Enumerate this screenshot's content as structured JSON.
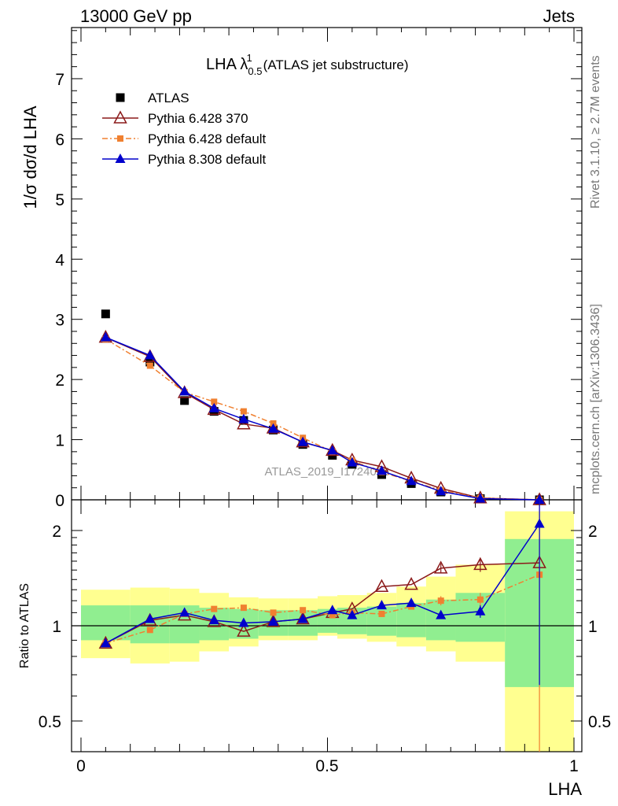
{
  "header": {
    "energy_label": "13000 GeV pp",
    "process_label": "Jets"
  },
  "side_text": {
    "rivet": "Rivet 3.1.10, ≥ 2.7M events",
    "site": "mcplots.cern.ch [arXiv:1306.3436]"
  },
  "watermark": "ATLAS_2019_I1724098",
  "chart_data": [
    {
      "type": "scatter",
      "panel": "main",
      "title": {
        "prefix": "LHA λ",
        "sup": "1",
        "sub": "0.5",
        "suffix": "(ATLAS jet substructure)"
      },
      "ylabel": "1/σ dσ/d LHA",
      "xlim": [
        0,
        1
      ],
      "ylim": [
        0,
        7.85
      ],
      "yticks": [
        0,
        1,
        2,
        3,
        4,
        5,
        6,
        7
      ],
      "x": [
        0.05,
        0.14,
        0.21,
        0.27,
        0.33,
        0.39,
        0.45,
        0.51,
        0.55,
        0.61,
        0.67,
        0.73,
        0.81,
        0.93
      ],
      "legend_position": "top-left",
      "series": [
        {
          "name": "ATLAS",
          "color": "#000000",
          "marker": "square",
          "values": [
            3.09,
            2.29,
            1.65,
            1.47,
            1.32,
            1.16,
            0.92,
            0.74,
            0.59,
            0.42,
            0.27,
            0.13,
            0.02,
            0.0
          ]
        },
        {
          "name": "Pythia 6.428 370",
          "color": "#8b1a1a",
          "marker": "triangle-open",
          "line": "solid",
          "values": [
            2.7,
            2.38,
            1.78,
            1.5,
            1.26,
            1.19,
            0.96,
            0.82,
            0.66,
            0.55,
            0.36,
            0.19,
            0.03,
            0.0
          ]
        },
        {
          "name": "Pythia 6.428 default",
          "color": "#f08030",
          "marker": "square-small",
          "line": "dashdot",
          "values": [
            2.67,
            2.23,
            1.79,
            1.63,
            1.47,
            1.27,
            1.03,
            0.8,
            0.65,
            0.46,
            0.31,
            0.16,
            0.03,
            0.0
          ]
        },
        {
          "name": "Pythia 8.308 default",
          "color": "#0000cc",
          "marker": "triangle",
          "line": "solid",
          "values": [
            2.7,
            2.4,
            1.8,
            1.52,
            1.34,
            1.18,
            0.96,
            0.82,
            0.62,
            0.48,
            0.31,
            0.14,
            0.02,
            0.0
          ]
        }
      ]
    },
    {
      "type": "scatter",
      "panel": "ratio",
      "ylabel": "Ratio to ATLAS",
      "xlabel": "LHA",
      "xlim": [
        0,
        1
      ],
      "ylim": [
        0.4,
        2.25
      ],
      "ytick_labels": [
        "0.5",
        "1",
        "2"
      ],
      "yticks": [
        0.5,
        1,
        2
      ],
      "xtick_labels": [
        "0",
        "0.5",
        "1"
      ],
      "xticks": [
        0,
        0.5,
        1
      ],
      "bands": {
        "bin_edges": [
          0.0,
          0.1,
          0.18,
          0.24,
          0.3,
          0.36,
          0.42,
          0.48,
          0.52,
          0.58,
          0.64,
          0.7,
          0.76,
          0.86,
          1.0
        ],
        "inner_color": "#90ee90",
        "outer_color": "#ffff90",
        "inner_lo": [
          0.9,
          0.88,
          0.88,
          0.9,
          0.91,
          0.93,
          0.93,
          0.95,
          0.94,
          0.93,
          0.92,
          0.9,
          0.89,
          0.64
        ],
        "inner_hi": [
          1.16,
          1.16,
          1.16,
          1.14,
          1.13,
          1.12,
          1.12,
          1.13,
          1.14,
          1.15,
          1.18,
          1.21,
          1.27,
          1.88
        ],
        "outer_lo": [
          0.79,
          0.76,
          0.77,
          0.83,
          0.86,
          0.9,
          0.9,
          0.93,
          0.91,
          0.89,
          0.86,
          0.83,
          0.77,
          0.3
        ],
        "outer_hi": [
          1.3,
          1.32,
          1.31,
          1.27,
          1.23,
          1.22,
          1.22,
          1.24,
          1.25,
          1.27,
          1.33,
          1.43,
          1.56,
          2.3
        ]
      },
      "x": [
        0.05,
        0.14,
        0.21,
        0.27,
        0.33,
        0.39,
        0.45,
        0.51,
        0.55,
        0.61,
        0.67,
        0.73,
        0.81,
        0.93
      ],
      "reference_line": 1,
      "series": [
        {
          "name": "Pythia 6.428 370",
          "color": "#8b1a1a",
          "marker": "triangle-open",
          "line": "solid",
          "values": [
            0.88,
            1.04,
            1.08,
            1.03,
            0.96,
            1.03,
            1.05,
            1.1,
            1.13,
            1.33,
            1.35,
            1.52,
            1.56,
            1.58
          ],
          "err": [
            0,
            0,
            0,
            0,
            0,
            0,
            0,
            0,
            0,
            0,
            0,
            0.05,
            0.08,
            0
          ]
        },
        {
          "name": "Pythia 6.428 default",
          "color": "#f08030",
          "marker": "square-small",
          "line": "dashdot",
          "values": [
            0.88,
            0.97,
            1.09,
            1.13,
            1.14,
            1.1,
            1.12,
            1.08,
            1.1,
            1.09,
            1.15,
            1.2,
            1.21,
            1.45
          ],
          "err": [
            0,
            0,
            0,
            0,
            0,
            0,
            0,
            0,
            0,
            0,
            0,
            0.04,
            0.06,
            1.1
          ]
        },
        {
          "name": "Pythia 8.308 default",
          "color": "#0000cc",
          "marker": "triangle",
          "line": "solid",
          "values": [
            0.88,
            1.05,
            1.1,
            1.04,
            1.02,
            1.03,
            1.05,
            1.12,
            1.08,
            1.16,
            1.18,
            1.08,
            1.11,
            2.1
          ],
          "err": [
            0,
            0,
            0,
            0,
            0,
            0,
            0,
            0,
            0,
            0,
            0,
            0,
            0.05,
            1.45
          ]
        }
      ]
    }
  ]
}
